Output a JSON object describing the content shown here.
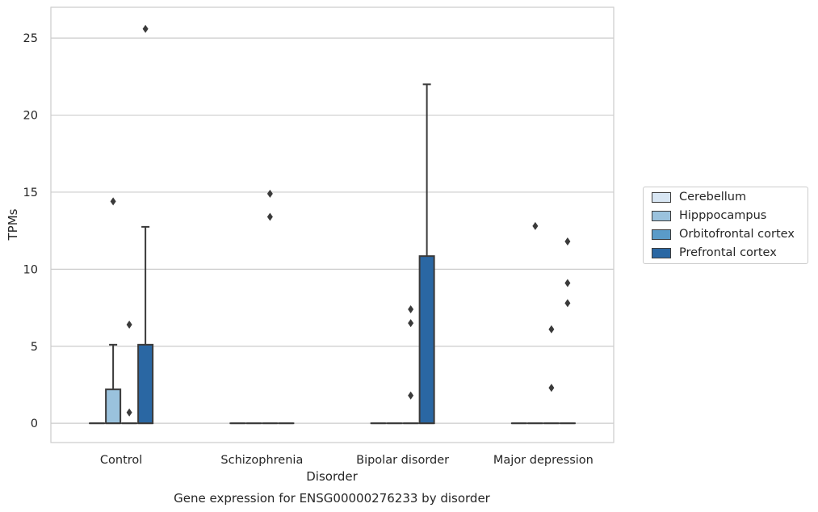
{
  "chart_data": {
    "type": "boxplot",
    "title": "Gene expression for ENSG00000276233 by disorder",
    "xlabel": "Disorder",
    "ylabel": "TPMs",
    "ylim": [
      -1.25,
      27
    ],
    "yticks": [
      0,
      5,
      10,
      15,
      20,
      25
    ],
    "grid": true,
    "legend_position": "right",
    "categories": [
      "Control",
      "Schizophrenia",
      "Bipolar disorder",
      "Major depression"
    ],
    "series": [
      {
        "name": "Cerebellum",
        "color": "#d8e6f3",
        "boxes": [
          {
            "q1": 0,
            "median": 0,
            "q3": 0,
            "whisker_low": 0,
            "whisker_high": 0,
            "outliers": []
          },
          {
            "q1": 0,
            "median": 0,
            "q3": 0,
            "whisker_low": 0,
            "whisker_high": 0,
            "outliers": []
          },
          {
            "q1": 0,
            "median": 0,
            "q3": 0,
            "whisker_low": 0,
            "whisker_high": 0,
            "outliers": []
          },
          {
            "q1": 0,
            "median": 0,
            "q3": 0,
            "whisker_low": 0,
            "whisker_high": 0,
            "outliers": []
          }
        ]
      },
      {
        "name": "Hipppocampus",
        "color": "#9ac2dd",
        "boxes": [
          {
            "q1": 0,
            "median": 0,
            "q3": 2.2,
            "whisker_low": 0,
            "whisker_high": 5.1,
            "outliers": [
              14.4
            ]
          },
          {
            "q1": 0,
            "median": 0,
            "q3": 0,
            "whisker_low": 0,
            "whisker_high": 0,
            "outliers": []
          },
          {
            "q1": 0,
            "median": 0,
            "q3": 0,
            "whisker_low": 0,
            "whisker_high": 0,
            "outliers": []
          },
          {
            "q1": 0,
            "median": 0,
            "q3": 0,
            "whisker_low": 0,
            "whisker_high": 0,
            "outliers": [
              12.8
            ]
          }
        ]
      },
      {
        "name": "Orbitofrontal cortex",
        "color": "#5a9bc8",
        "boxes": [
          {
            "q1": 0,
            "median": 0,
            "q3": 0,
            "whisker_low": 0,
            "whisker_high": 0,
            "outliers": [
              6.4,
              0.7
            ]
          },
          {
            "q1": 0,
            "median": 0,
            "q3": 0,
            "whisker_low": 0,
            "whisker_high": 0,
            "outliers": [
              14.9,
              13.4
            ]
          },
          {
            "q1": 0,
            "median": 0,
            "q3": 0,
            "whisker_low": 0,
            "whisker_high": 0,
            "outliers": [
              7.4,
              6.5,
              1.8
            ]
          },
          {
            "q1": 0,
            "median": 0,
            "q3": 0,
            "whisker_low": 0,
            "whisker_high": 0,
            "outliers": [
              6.1,
              2.3
            ]
          }
        ]
      },
      {
        "name": "Prefrontal cortex",
        "color": "#2a67a3",
        "boxes": [
          {
            "q1": 0,
            "median": 0,
            "q3": 5.1,
            "whisker_low": 0,
            "whisker_high": 12.75,
            "outliers": [
              25.6
            ]
          },
          {
            "q1": 0,
            "median": 0,
            "q3": 0,
            "whisker_low": 0,
            "whisker_high": 0,
            "outliers": []
          },
          {
            "q1": 0,
            "median": 0,
            "q3": 10.85,
            "whisker_low": 0,
            "whisker_high": 22.0,
            "outliers": []
          },
          {
            "q1": 0,
            "median": 0,
            "q3": 0,
            "whisker_low": 0,
            "whisker_high": 0,
            "outliers": [
              11.8,
              9.1,
              7.8
            ]
          }
        ]
      }
    ]
  }
}
